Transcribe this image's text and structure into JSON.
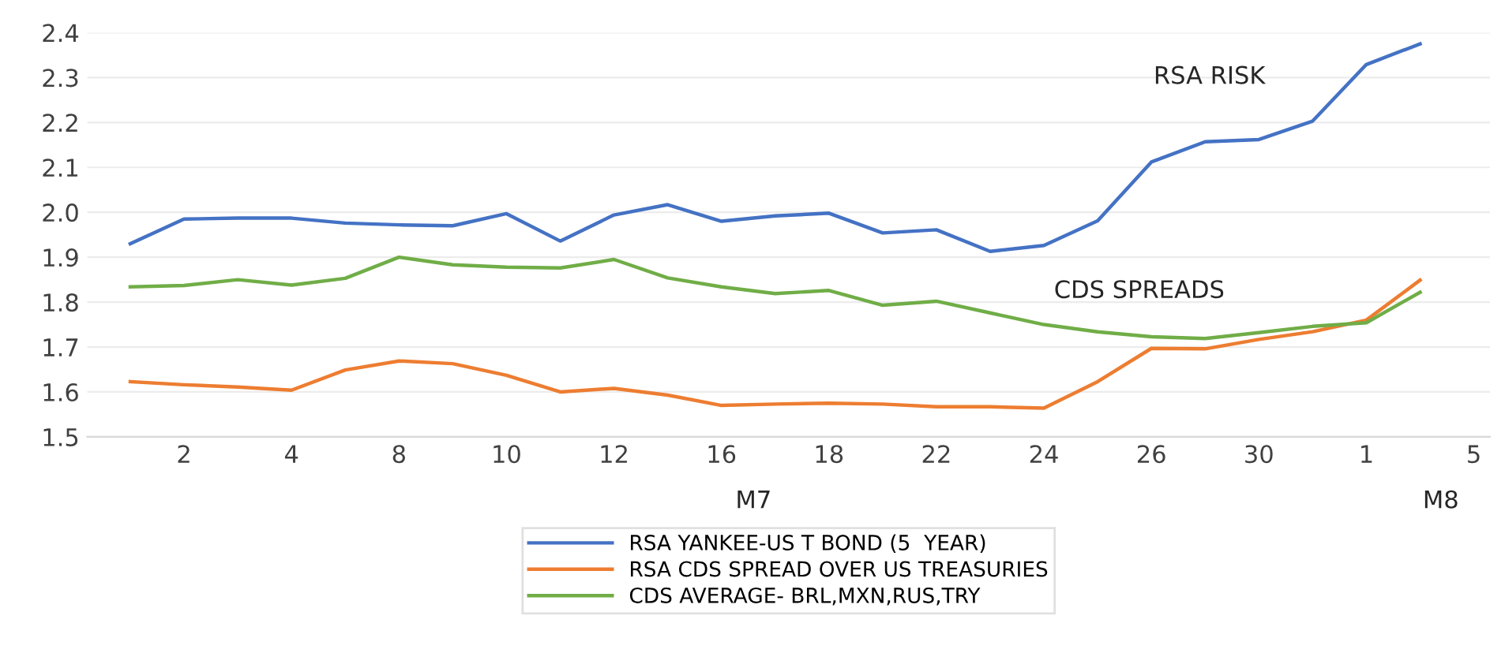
{
  "chart_data": {
    "type": "line",
    "categories": [
      null,
      "2",
      null,
      "4",
      null,
      "8",
      null,
      "10",
      null,
      "12",
      null,
      "16",
      null,
      "18",
      null,
      "22",
      null,
      "24",
      null,
      "26",
      null,
      "30",
      null,
      "1",
      null,
      "5"
    ],
    "series": [
      {
        "name": "RSA YANKEE-US T BOND (5  YEAR)",
        "color": "#4472c4",
        "values": [
          1.93,
          1.985,
          1.987,
          1.987,
          1.976,
          1.972,
          1.97,
          1.997,
          1.936,
          1.994,
          2.017,
          1.98,
          1.992,
          1.998,
          1.954,
          1.961,
          1.913,
          1.926,
          1.981,
          2.112,
          2.157,
          2.162,
          2.203,
          2.329,
          2.375,
          null
        ]
      },
      {
        "name": "RSA CDS SPREAD OVER US TREASURIES",
        "color": "#ed7d31",
        "values": [
          1.623,
          1.616,
          1.611,
          1.604,
          1.649,
          1.669,
          1.663,
          1.637,
          1.6,
          1.608,
          1.593,
          1.57,
          1.573,
          1.575,
          1.573,
          1.567,
          1.567,
          1.564,
          1.623,
          1.697,
          1.696,
          1.717,
          1.734,
          1.76,
          1.849,
          null
        ]
      },
      {
        "name": "CDS AVERAGE- BRL,MXN,RUS,TRY",
        "color": "#70ad47",
        "values": [
          1.834,
          1.837,
          1.85,
          1.838,
          1.853,
          1.9,
          1.883,
          1.878,
          1.876,
          1.895,
          1.854,
          1.834,
          1.819,
          1.826,
          1.793,
          1.802,
          1.776,
          1.75,
          1.734,
          1.723,
          1.719,
          1.732,
          1.746,
          1.754,
          1.822,
          null
        ]
      }
    ],
    "ylim": [
      1.5,
      2.4
    ],
    "yticks": [
      1.5,
      1.6,
      1.7,
      1.8,
      1.9,
      {
        "value": 2,
        "label": "2.0"
      },
      2.1,
      2.2,
      2.3,
      2.4
    ],
    "annotations": [
      "RSA RISK",
      "CDS SPREADS",
      "M7",
      "M8"
    ],
    "grid": "y",
    "legend": "bottom",
    "marker": "none",
    "line_style": "solid"
  }
}
